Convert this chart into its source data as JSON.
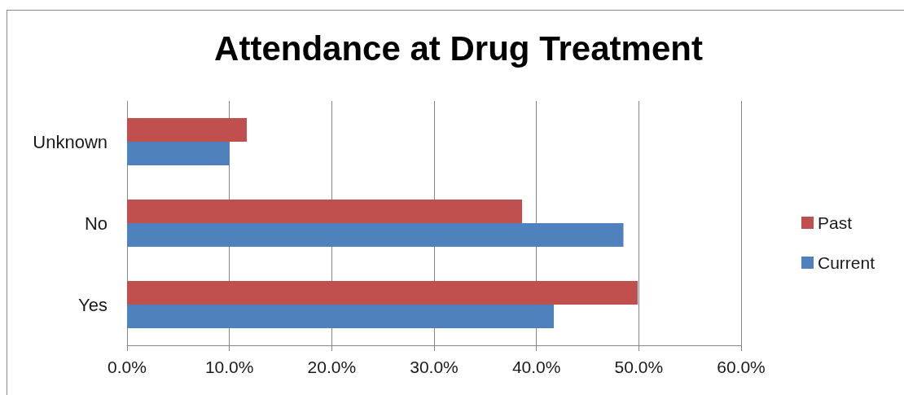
{
  "chart_data": {
    "type": "bar",
    "orientation": "horizontal",
    "title": "Attendance at Drug Treatment",
    "categories": [
      "Unknown",
      "No",
      "Yes"
    ],
    "series": [
      {
        "name": "Past",
        "color": "#c0504d",
        "values": [
          11.7,
          38.6,
          49.9
        ]
      },
      {
        "name": "Current",
        "color": "#4f81bd",
        "values": [
          10.0,
          48.5,
          41.7
        ]
      }
    ],
    "xlim": [
      0,
      60
    ],
    "xticks": [
      {
        "value": 0,
        "label": "0.0%"
      },
      {
        "value": 10,
        "label": "10.0%"
      },
      {
        "value": 20,
        "label": "20.0%"
      },
      {
        "value": 30,
        "label": "30.0%"
      },
      {
        "value": 40,
        "label": "40.0%"
      },
      {
        "value": 50,
        "label": "50.0%"
      },
      {
        "value": 60,
        "label": "60.0%"
      }
    ],
    "grid": "x",
    "legend": "right"
  }
}
